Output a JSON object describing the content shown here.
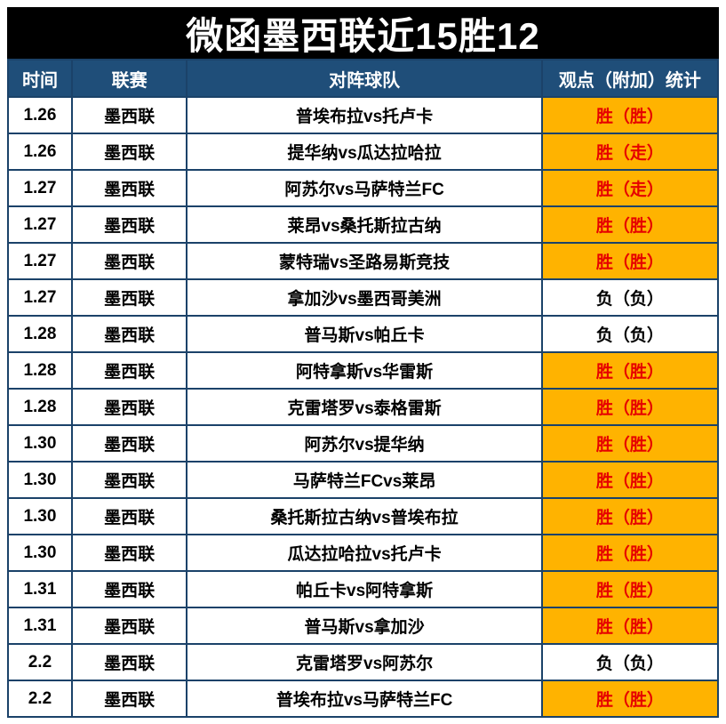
{
  "title": "微函墨西联近15胜12",
  "colors": {
    "title_bg": "#000000",
    "title_text": "#ffffff",
    "header_bg": "#1f4e79",
    "header_text": "#ffffff",
    "border": "#1b4269",
    "win_bg": "#ffb300",
    "win_text": "#e60000",
    "loss_text": "#000000"
  },
  "table": {
    "headers": [
      "时间",
      "联赛",
      "对阵球队",
      "观点（附加）统计"
    ],
    "rows": [
      {
        "date": "1.26",
        "league": "墨西联",
        "match": "普埃布拉vs托卢卡",
        "result": "胜（胜）",
        "win": true
      },
      {
        "date": "1.26",
        "league": "墨西联",
        "match": "提华纳vs瓜达拉哈拉",
        "result": "胜（走）",
        "win": true
      },
      {
        "date": "1.27",
        "league": "墨西联",
        "match": "阿苏尔vs马萨特兰FC",
        "result": "胜（走）",
        "win": true
      },
      {
        "date": "1.27",
        "league": "墨西联",
        "match": "莱昂vs桑托斯拉古纳",
        "result": "胜（胜）",
        "win": true
      },
      {
        "date": "1.27",
        "league": "墨西联",
        "match": "蒙特瑞vs圣路易斯竞技",
        "result": "胜（胜）",
        "win": true
      },
      {
        "date": "1.27",
        "league": "墨西联",
        "match": "拿加沙vs墨西哥美洲",
        "result": "负（负）",
        "win": false
      },
      {
        "date": "1.28",
        "league": "墨西联",
        "match": "普马斯vs帕丘卡",
        "result": "负（负）",
        "win": false
      },
      {
        "date": "1.28",
        "league": "墨西联",
        "match": "阿特拿斯vs华雷斯",
        "result": "胜（胜）",
        "win": true
      },
      {
        "date": "1.28",
        "league": "墨西联",
        "match": "克雷塔罗vs泰格雷斯",
        "result": "胜（胜）",
        "win": true
      },
      {
        "date": "1.30",
        "league": "墨西联",
        "match": "阿苏尔vs提华纳",
        "result": "胜（胜）",
        "win": true
      },
      {
        "date": "1.30",
        "league": "墨西联",
        "match": "马萨特兰FCvs莱昂",
        "result": "胜（胜）",
        "win": true
      },
      {
        "date": "1.30",
        "league": "墨西联",
        "match": "桑托斯拉古纳vs普埃布拉",
        "result": "胜（胜）",
        "win": true
      },
      {
        "date": "1.30",
        "league": "墨西联",
        "match": "瓜达拉哈拉vs托卢卡",
        "result": "胜（胜）",
        "win": true
      },
      {
        "date": "1.31",
        "league": "墨西联",
        "match": "帕丘卡vs阿特拿斯",
        "result": "胜（胜）",
        "win": true
      },
      {
        "date": "1.31",
        "league": "墨西联",
        "match": "普马斯vs拿加沙",
        "result": "胜（胜）",
        "win": true
      },
      {
        "date": "2.2",
        "league": "墨西联",
        "match": "克雷塔罗vs阿苏尔",
        "result": "负（负）",
        "win": false
      },
      {
        "date": "2.2",
        "league": "墨西联",
        "match": "普埃布拉vs马萨特兰FC",
        "result": "胜（胜）",
        "win": true
      }
    ]
  }
}
